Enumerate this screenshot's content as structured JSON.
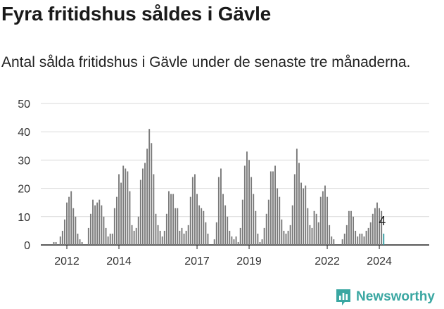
{
  "header": {
    "title": "Fyra fritidshus såldes i Gävle",
    "subtitle": "Antal sålda fritidshus i Gävle under de senaste tre månaderna."
  },
  "branding": {
    "logo_text": "Newsworthy",
    "logo_icon": "bar-chart-icon",
    "accent_color": "#3aa7a2"
  },
  "colors": {
    "bar": "#7a7a7a",
    "highlight": "#3a9ea3",
    "grid": "#d9d9d9",
    "axis": "#222222",
    "text": "#333333"
  },
  "chart_data": {
    "type": "bar",
    "title": "Fyra fritidshus såldes i Gävle",
    "subtitle": "Antal sålda fritidshus i Gävle under de senaste tre månaderna.",
    "xlabel": "",
    "ylabel": "",
    "ylim": [
      0,
      50
    ],
    "yticks": [
      0,
      10,
      20,
      30,
      40,
      50
    ],
    "grid": true,
    "legend": "none",
    "x_start": "2011-01",
    "x_end": "2025-12",
    "first_bar": "2011-07",
    "xtick_labels": [
      {
        "label": "2012",
        "date": "2012-01"
      },
      {
        "label": "2014",
        "date": "2014-01"
      },
      {
        "label": "2017",
        "date": "2017-01"
      },
      {
        "label": "2019",
        "date": "2019-01"
      },
      {
        "label": "2022",
        "date": "2022-01"
      },
      {
        "label": "2024",
        "date": "2024-01"
      }
    ],
    "values": [
      1,
      1,
      0,
      3,
      5,
      9,
      15,
      17,
      19,
      13,
      10,
      4,
      2,
      1,
      0,
      0,
      6,
      11,
      16,
      14,
      15,
      16,
      14,
      10,
      6,
      3,
      4,
      4,
      13,
      17,
      25,
      22,
      28,
      27,
      26,
      19,
      7,
      5,
      6,
      10,
      23,
      27,
      29,
      34,
      41,
      36,
      25,
      11,
      7,
      5,
      3,
      5,
      11,
      19,
      18,
      18,
      13,
      13,
      5,
      6,
      4,
      5,
      7,
      17,
      24,
      25,
      18,
      14,
      13,
      12,
      8,
      4,
      0,
      0,
      2,
      8,
      24,
      27,
      18,
      14,
      10,
      5,
      3,
      2,
      3,
      1,
      6,
      16,
      28,
      33,
      30,
      24,
      18,
      12,
      4,
      1,
      2,
      6,
      11,
      16,
      26,
      26,
      28,
      20,
      17,
      9,
      5,
      4,
      5,
      7,
      14,
      25,
      34,
      29,
      22,
      20,
      21,
      13,
      7,
      6,
      12,
      11,
      8,
      17,
      19,
      21,
      17,
      7,
      3,
      2,
      0,
      0,
      0,
      2,
      4,
      7,
      12,
      12,
      10,
      5,
      3,
      4,
      4,
      3,
      5,
      6,
      8,
      11,
      13,
      15,
      13,
      12,
      4
    ],
    "highlight_last": true,
    "annotations": [
      {
        "text": "4",
        "target": "last"
      }
    ]
  }
}
